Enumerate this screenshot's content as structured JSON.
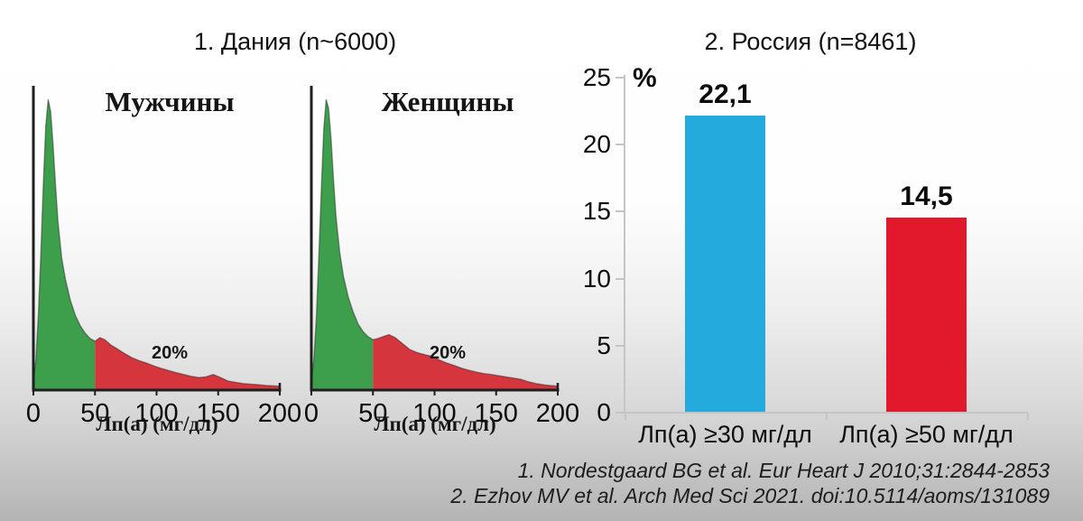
{
  "references": {
    "line1": "1. Nordestgaard BG et al. Eur Heart J 2010;31:2844-2853",
    "line2": "2. Ezhov MV et al. Arch Med Sci 2021. doi:10.5114/aoms/131089"
  },
  "chart_data": [
    {
      "type": "area",
      "title": "1. Дания (n~6000)",
      "xlabel": "Лп(а) (мг/дл)",
      "xlim": [
        0,
        200
      ],
      "x_ticks": [
        0,
        50,
        100,
        150,
        200
      ],
      "threshold_x": 50,
      "tail_annotation": "20%",
      "colors": {
        "below_threshold": "#3d9f4c",
        "above_threshold": "#d5363e",
        "axis": "#1f1f1f"
      },
      "x": [
        0,
        2,
        4,
        6,
        8,
        10,
        12,
        14,
        16,
        18,
        20,
        23,
        26,
        30,
        34,
        38,
        42,
        46,
        50,
        54,
        58,
        63,
        68,
        74,
        80,
        86,
        92,
        98,
        104,
        110,
        116,
        122,
        128,
        134,
        140,
        146,
        152,
        158,
        164,
        170,
        176,
        182,
        190,
        200
      ],
      "series": [
        {
          "name": "Мужчины",
          "density": [
            0.03,
            0.1,
            0.25,
            0.45,
            0.68,
            0.88,
            0.97,
            0.93,
            0.82,
            0.68,
            0.56,
            0.44,
            0.37,
            0.3,
            0.25,
            0.215,
            0.19,
            0.172,
            0.163,
            0.175,
            0.168,
            0.15,
            0.138,
            0.122,
            0.108,
            0.098,
            0.09,
            0.08,
            0.072,
            0.065,
            0.058,
            0.052,
            0.046,
            0.042,
            0.044,
            0.052,
            0.042,
            0.03,
            0.026,
            0.022,
            0.02,
            0.018,
            0.015,
            0.013
          ]
        },
        {
          "name": "Женщины",
          "density": [
            0.03,
            0.1,
            0.24,
            0.44,
            0.66,
            0.87,
            0.97,
            0.94,
            0.84,
            0.7,
            0.58,
            0.46,
            0.38,
            0.31,
            0.26,
            0.22,
            0.195,
            0.178,
            0.168,
            0.172,
            0.178,
            0.185,
            0.175,
            0.155,
            0.135,
            0.125,
            0.118,
            0.112,
            0.1,
            0.09,
            0.082,
            0.073,
            0.066,
            0.06,
            0.055,
            0.052,
            0.048,
            0.044,
            0.04,
            0.036,
            0.028,
            0.022,
            0.017,
            0.013
          ]
        }
      ]
    },
    {
      "type": "bar",
      "title": "2. Россия (n=8461)",
      "ylabel": "%",
      "ylim": [
        0,
        25
      ],
      "y_ticks": [
        0,
        5,
        10,
        15,
        20,
        25
      ],
      "categories": [
        "Лп(а) ≥30 мг/дл",
        "Лп(а) ≥50 мг/дл"
      ],
      "values": [
        22.1,
        14.5
      ],
      "value_labels": [
        "22,1",
        "14,5"
      ],
      "bar_colors": [
        "#25aade",
        "#e2192c"
      ],
      "axis_color": "#c5c5c5",
      "legend": "none",
      "grid": "off"
    }
  ]
}
